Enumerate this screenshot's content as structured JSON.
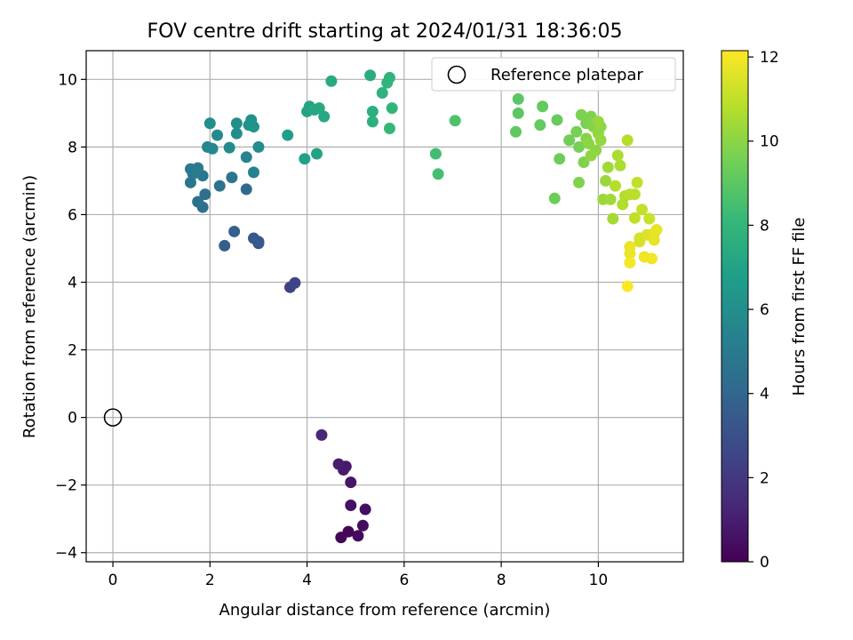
{
  "chart_data": {
    "type": "scatter",
    "title": "FOV centre drift starting at 2024/01/31 18:36:05",
    "xlabel": "Angular distance from reference (arcmin)",
    "ylabel": "Rotation from reference (arcmin)",
    "xlim": [
      -0.55,
      11.75
    ],
    "ylim": [
      -4.27,
      10.85
    ],
    "xticks": [
      0,
      2,
      4,
      6,
      8,
      10
    ],
    "yticks": [
      -4,
      -2,
      0,
      2,
      4,
      6,
      8,
      10
    ],
    "xtick_labels": [
      "0",
      "2",
      "4",
      "6",
      "8",
      "10"
    ],
    "ytick_labels": [
      "−4",
      "−2",
      "0",
      "2",
      "4",
      "6",
      "8",
      "10"
    ],
    "grid": true,
    "legend": {
      "position": "top-right",
      "entries": [
        "Reference platepar"
      ]
    },
    "reference_point": {
      "x": 0,
      "y": 0
    },
    "colorbar": {
      "label": "Hours from first FF file",
      "min": 0,
      "max": 12.15,
      "ticks": [
        0,
        2,
        4,
        6,
        8,
        10,
        12
      ],
      "tick_labels": [
        "0",
        "2",
        "4",
        "6",
        "8",
        "10",
        "12"
      ],
      "colormap": "viridis"
    },
    "colormap_stops": [
      "#440154",
      "#482878",
      "#3e4989",
      "#31688e",
      "#26828e",
      "#1f9e89",
      "#35b779",
      "#6ece58",
      "#b5de2b",
      "#fde725"
    ],
    "series": [
      {
        "points": [
          [
            4.7,
            -3.55,
            0.1
          ],
          [
            4.85,
            -3.38,
            0.2
          ],
          [
            5.05,
            -3.5,
            0.3
          ],
          [
            5.15,
            -3.2,
            0.4
          ],
          [
            5.2,
            -2.72,
            0.5
          ],
          [
            4.9,
            -2.6,
            0.6
          ],
          [
            4.9,
            -1.92,
            0.7
          ],
          [
            4.8,
            -1.45,
            0.8
          ],
          [
            4.75,
            -1.55,
            0.9
          ],
          [
            4.65,
            -1.38,
            1.0
          ],
          [
            4.3,
            -0.52,
            1.3
          ],
          [
            3.65,
            3.85,
            2.4
          ],
          [
            3.75,
            3.98,
            2.5
          ],
          [
            3.0,
            5.15,
            3.3
          ],
          [
            2.9,
            5.3,
            3.4
          ],
          [
            3.0,
            5.2,
            3.4
          ],
          [
            2.3,
            5.08,
            3.6
          ],
          [
            2.5,
            5.5,
            3.7
          ],
          [
            2.75,
            6.75,
            4.1
          ],
          [
            1.85,
            6.22,
            4.4
          ],
          [
            1.75,
            6.38,
            4.5
          ],
          [
            1.9,
            6.6,
            4.4
          ],
          [
            2.2,
            6.85,
            4.6
          ],
          [
            2.45,
            7.1,
            4.7
          ],
          [
            1.6,
            6.95,
            4.8
          ],
          [
            1.85,
            7.15,
            4.9
          ],
          [
            1.6,
            7.35,
            5.0
          ],
          [
            1.75,
            7.38,
            5.1
          ],
          [
            1.65,
            7.2,
            5.0
          ],
          [
            2.75,
            7.7,
            5.5
          ],
          [
            2.9,
            7.25,
            5.4
          ],
          [
            1.95,
            8.0,
            5.6
          ],
          [
            2.05,
            7.95,
            5.7
          ],
          [
            2.4,
            7.98,
            5.8
          ],
          [
            2.15,
            8.35,
            5.8
          ],
          [
            2.55,
            8.4,
            5.9
          ],
          [
            3.0,
            8.0,
            5.9
          ],
          [
            2.55,
            8.7,
            6.0
          ],
          [
            2.0,
            8.7,
            6.0
          ],
          [
            2.85,
            8.8,
            6.1
          ],
          [
            2.8,
            8.65,
            6.2
          ],
          [
            2.9,
            8.6,
            6.2
          ],
          [
            3.6,
            8.35,
            6.8
          ],
          [
            3.95,
            7.65,
            6.9
          ],
          [
            4.2,
            7.8,
            7.0
          ],
          [
            4.0,
            9.05,
            7.0
          ],
          [
            4.05,
            9.2,
            7.1
          ],
          [
            4.15,
            9.1,
            7.2
          ],
          [
            4.25,
            9.15,
            7.3
          ],
          [
            4.35,
            8.9,
            7.3
          ],
          [
            4.5,
            9.95,
            7.4
          ],
          [
            5.3,
            10.12,
            7.5
          ],
          [
            5.35,
            9.05,
            7.6
          ],
          [
            5.35,
            8.75,
            7.7
          ],
          [
            5.55,
            9.6,
            7.8
          ],
          [
            5.65,
            9.9,
            7.9
          ],
          [
            5.7,
            10.05,
            7.9
          ],
          [
            5.75,
            9.15,
            8.0
          ],
          [
            5.7,
            8.55,
            8.1
          ],
          [
            6.65,
            7.8,
            8.4
          ],
          [
            6.7,
            7.2,
            8.5
          ],
          [
            7.05,
            8.78,
            8.7
          ],
          [
            8.35,
            9.42,
            9.0
          ],
          [
            8.35,
            9.0,
            9.0
          ],
          [
            8.3,
            8.45,
            9.1
          ],
          [
            8.8,
            8.65,
            9.2
          ],
          [
            8.85,
            9.2,
            9.2
          ],
          [
            9.15,
            8.8,
            9.3
          ],
          [
            9.2,
            7.65,
            9.4
          ],
          [
            9.1,
            6.48,
            9.4
          ],
          [
            9.4,
            8.2,
            9.5
          ],
          [
            9.55,
            8.45,
            9.6
          ],
          [
            9.6,
            8.0,
            9.6
          ],
          [
            9.65,
            8.95,
            9.7
          ],
          [
            9.75,
            8.7,
            9.7
          ],
          [
            9.85,
            8.9,
            9.8
          ],
          [
            9.7,
            7.55,
            9.8
          ],
          [
            9.6,
            6.95,
            9.8
          ],
          [
            9.75,
            8.25,
            9.9
          ],
          [
            9.9,
            8.6,
            9.9
          ],
          [
            9.8,
            8.1,
            10.0
          ],
          [
            9.95,
            7.9,
            10.0
          ],
          [
            10.05,
            8.6,
            10.1
          ],
          [
            10.0,
            8.4,
            10.1
          ],
          [
            9.85,
            7.75,
            10.1
          ],
          [
            10.05,
            8.2,
            10.2
          ],
          [
            10.0,
            8.75,
            10.2
          ],
          [
            10.15,
            7.0,
            10.3
          ],
          [
            10.1,
            6.45,
            10.3
          ],
          [
            10.2,
            7.4,
            10.4
          ],
          [
            10.25,
            6.45,
            10.4
          ],
          [
            10.3,
            5.88,
            10.5
          ],
          [
            10.4,
            7.75,
            10.6
          ],
          [
            10.45,
            7.45,
            10.6
          ],
          [
            10.55,
            6.55,
            10.7
          ],
          [
            10.5,
            6.3,
            10.7
          ],
          [
            10.35,
            6.85,
            10.8
          ],
          [
            10.6,
            8.2,
            10.8
          ],
          [
            10.65,
            6.6,
            10.9
          ],
          [
            10.75,
            6.6,
            10.9
          ],
          [
            10.8,
            6.95,
            11.0
          ],
          [
            10.75,
            5.9,
            11.0
          ],
          [
            10.9,
            6.15,
            11.1
          ],
          [
            11.05,
            5.88,
            11.2
          ],
          [
            10.85,
            5.3,
            11.3
          ],
          [
            10.85,
            5.2,
            11.4
          ],
          [
            11.0,
            5.4,
            11.5
          ],
          [
            11.15,
            5.45,
            11.6
          ],
          [
            11.2,
            5.55,
            11.7
          ],
          [
            11.15,
            5.25,
            11.7
          ],
          [
            10.65,
            5.05,
            11.8
          ],
          [
            10.65,
            4.85,
            11.8
          ],
          [
            10.95,
            4.75,
            11.9
          ],
          [
            11.1,
            4.7,
            11.9
          ],
          [
            10.65,
            4.58,
            12.0
          ],
          [
            10.6,
            3.88,
            12.1
          ]
        ]
      }
    ]
  }
}
